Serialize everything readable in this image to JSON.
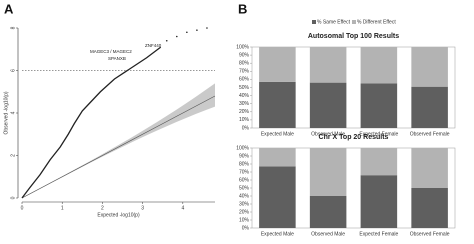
{
  "chart_data": [
    {
      "type": "qq",
      "panel_label": "A",
      "xlabel": "Expected -log10(p)",
      "ylabel": "Observed -log10(p)",
      "xlim": [
        0,
        4.8
      ],
      "ylim": [
        0,
        8
      ],
      "xticks": [
        0,
        1,
        2,
        3,
        4
      ],
      "yticks": [
        0,
        2,
        4,
        6,
        8
      ],
      "threshold": 6,
      "annotations": [
        "ZNF440",
        "MAGEC3 / MAGEC2",
        "SPANXB"
      ],
      "series": [
        {
          "style": "line",
          "color": "#222222",
          "x": [
            0,
            0.2,
            0.45,
            0.7,
            0.95,
            1.15,
            1.3,
            1.5,
            1.7,
            1.95,
            2.3,
            2.7,
            3.1,
            3.45
          ],
          "values": [
            0,
            0.5,
            1.1,
            1.8,
            2.4,
            3.0,
            3.5,
            4.1,
            4.5,
            5.0,
            5.6,
            6.1,
            6.6,
            7.1
          ]
        },
        {
          "style": "points",
          "color": "#222222",
          "x": [
            3.6,
            3.85,
            4.1,
            4.35,
            4.6
          ],
          "values": [
            7.4,
            7.6,
            7.8,
            7.9,
            8.0
          ]
        }
      ]
    },
    {
      "type": "stacked_bar",
      "panel_label": "B",
      "title": "Autosomal Top 100 Results",
      "categories": [
        "Expected Male",
        "Observed Male",
        "Expected Female",
        "Observed Female"
      ],
      "ylim": [
        0,
        100
      ],
      "yticks": [
        {
          "value": 0,
          "label": "0%"
        },
        {
          "value": 10,
          "label": "10%"
        },
        {
          "value": 20,
          "label": "20%"
        },
        {
          "value": 30,
          "label": "30%"
        },
        {
          "value": 40,
          "label": "40%"
        },
        {
          "value": 50,
          "label": "50%"
        },
        {
          "value": 60,
          "label": "60%"
        },
        {
          "value": 70,
          "label": "70%"
        },
        {
          "value": 80,
          "label": "80%"
        },
        {
          "value": 90,
          "label": "90%"
        },
        {
          "value": 100,
          "label": "100%"
        }
      ],
      "series": [
        {
          "name": "% Same Effect",
          "color": "#5f5f5f",
          "values": [
            57,
            56,
            55,
            51
          ]
        },
        {
          "name": "% Different Effect",
          "color": "#b3b3b3",
          "values": [
            43,
            44,
            45,
            49
          ]
        }
      ]
    },
    {
      "type": "stacked_bar",
      "title": "Chr X Top 20 Results",
      "categories": [
        "Expected Male",
        "Observed Male",
        "Expected Female",
        "Observed Female"
      ],
      "ylim": [
        0,
        100
      ],
      "yticks": [
        {
          "value": 0,
          "label": "0%"
        },
        {
          "value": 10,
          "label": "10%"
        },
        {
          "value": 20,
          "label": "20%"
        },
        {
          "value": 30,
          "label": "30%"
        },
        {
          "value": 40,
          "label": "40%"
        },
        {
          "value": 50,
          "label": "50%"
        },
        {
          "value": 60,
          "label": "60%"
        },
        {
          "value": 70,
          "label": "70%"
        },
        {
          "value": 80,
          "label": "80%"
        },
        {
          "value": 90,
          "label": "90%"
        },
        {
          "value": 100,
          "label": "100%"
        }
      ],
      "series": [
        {
          "color": "#5f5f5f",
          "values": [
            77,
            40,
            66,
            50
          ]
        },
        {
          "color": "#b3b3b3",
          "values": [
            23,
            60,
            34,
            50
          ]
        }
      ]
    }
  ]
}
